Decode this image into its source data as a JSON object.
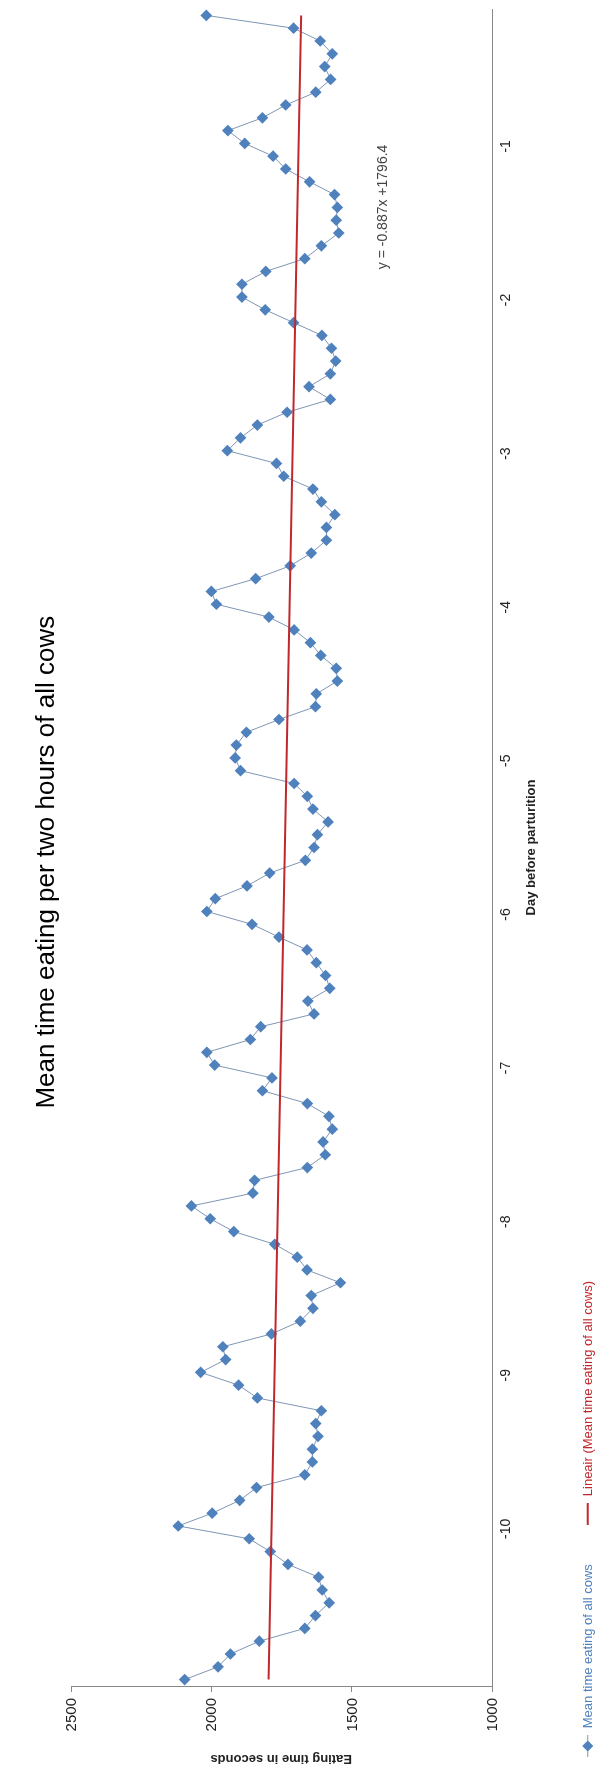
{
  "chart_data": {
    "type": "line",
    "title": "Mean time eating per two hours of all cows",
    "xlabel": "Eating time in seconds",
    "ylabel": "Day before parturition",
    "orientation": "horizontal",
    "annotations": [
      "y = -0.887x +1796.4"
    ],
    "xlim": [
      2500,
      1000
    ],
    "xticks": [
      2500,
      2000,
      1500,
      1000
    ],
    "ylim": [
      -11.0417,
      -0.125
    ],
    "yticks": [
      -10,
      -9,
      -8,
      -7,
      -6,
      -5,
      -4,
      -3,
      -2,
      -1
    ],
    "grid": false,
    "legend": "bottom right",
    "marker": "diamond",
    "line_style": "solid",
    "series": [
      {
        "name": "Mean time eating of all cows",
        "color": "#4f81bd",
        "x": [
          -11,
          -10.9167,
          -10.8333,
          -10.75,
          -10.6667,
          -10.5833,
          -10.5,
          -10.4167,
          -10.3333,
          -10.25,
          -10.1667,
          -10.0833,
          -10,
          -9.9167,
          -9.8333,
          -9.75,
          -9.6667,
          -9.5833,
          -9.5,
          -9.4167,
          -9.3333,
          -9.25,
          -9.1667,
          -9.0833,
          -9,
          -8.9167,
          -8.8333,
          -8.75,
          -8.6667,
          -8.5833,
          -8.5,
          -8.4167,
          -8.3333,
          -8.25,
          -8.1667,
          -8.0833,
          -8,
          -7.9167,
          -7.8333,
          -7.75,
          -7.6667,
          -7.5833,
          -7.5,
          -7.4167,
          -7.3333,
          -7.25,
          -7.1667,
          -7.0833,
          -7,
          -6.9167,
          -6.8333,
          -6.75,
          -6.6667,
          -6.5833,
          -6.5,
          -6.4167,
          -6.3333,
          -6.25,
          -6.1667,
          -6.0833,
          -6,
          -5.9167,
          -5.8333,
          -5.75,
          -5.6667,
          -5.5833,
          -5.5,
          -5.4167,
          -5.3333,
          -5.25,
          -5.1667,
          -5.0833,
          -5,
          -4.9167,
          -4.8333,
          -4.75,
          -4.6667,
          -4.5833,
          -4.5,
          -4.4167,
          -4.3333,
          -4.25,
          -4.1667,
          -4.0833,
          -4,
          -3.9167,
          -3.8333,
          -3.75,
          -3.6667,
          -3.5833,
          -3.5,
          -3.4167,
          -3.3333,
          -3.25,
          -3.1667,
          -3.0833,
          -3,
          -2.9167,
          -2.8333,
          -2.75,
          -2.6667,
          -2.5833,
          -2.5,
          -2.4167,
          -2.3333,
          -2.25,
          -2.1667,
          -2.0833,
          -2,
          -1.9167,
          -1.8333,
          -1.75,
          -1.6667,
          -1.5833,
          -1.5,
          -1.4167,
          -1.3333,
          -1.25,
          -1.1667,
          -1.0833,
          -1,
          -0.9167,
          -0.8333,
          -0.75,
          -0.6667,
          -0.5833,
          -0.5,
          -0.4167,
          -0.3333,
          -0.25,
          -0.1667
        ],
        "values": [
          2095,
          1976,
          1932,
          1829,
          1667,
          1629,
          1580,
          1605,
          1618,
          1727,
          1790,
          1865,
          2118,
          1997,
          1899,
          1839,
          1667,
          1640,
          1640,
          1620,
          1628,
          1608,
          1836,
          1903,
          2038,
          1949,
          1959,
          1786,
          1683,
          1638,
          1644,
          1540,
          1659,
          1694,
          1774,
          1920,
          2004,
          2071,
          1852,
          1846,
          1658,
          1594,
          1602,
          1569,
          1581,
          1658,
          1818,
          1784,
          1988,
          2016,
          1861,
          1824,
          1634,
          1656,
          1578,
          1593,
          1626,
          1659,
          1759,
          1855,
          2016,
          1986,
          1873,
          1792,
          1665,
          1634,
          1622,
          1584,
          1638,
          1658,
          1705,
          1896,
          1915,
          1911,
          1875,
          1759,
          1629,
          1626,
          1551,
          1555,
          1610,
          1647,
          1705,
          1795,
          1982,
          2000,
          1842,
          1719,
          1644,
          1590,
          1590,
          1560,
          1608,
          1638,
          1742,
          1768,
          1943,
          1896,
          1836,
          1730,
          1576,
          1652,
          1576,
          1557,
          1572,
          1606,
          1707,
          1808,
          1891,
          1891,
          1806,
          1667,
          1608,
          1546,
          1555,
          1551,
          1561,
          1650,
          1735,
          1780,
          1881,
          1941,
          1818,
          1735,
          1628,
          1575,
          1596,
          1569,
          1612,
          1707,
          2018
        ]
      },
      {
        "name": "Lineair (Mean time eating of all cows)",
        "type": "line",
        "marker": "none",
        "color": "#c0282d",
        "x": [
          -11,
          -0.1667
        ],
        "values": [
          1796,
          1680
        ]
      }
    ]
  }
}
